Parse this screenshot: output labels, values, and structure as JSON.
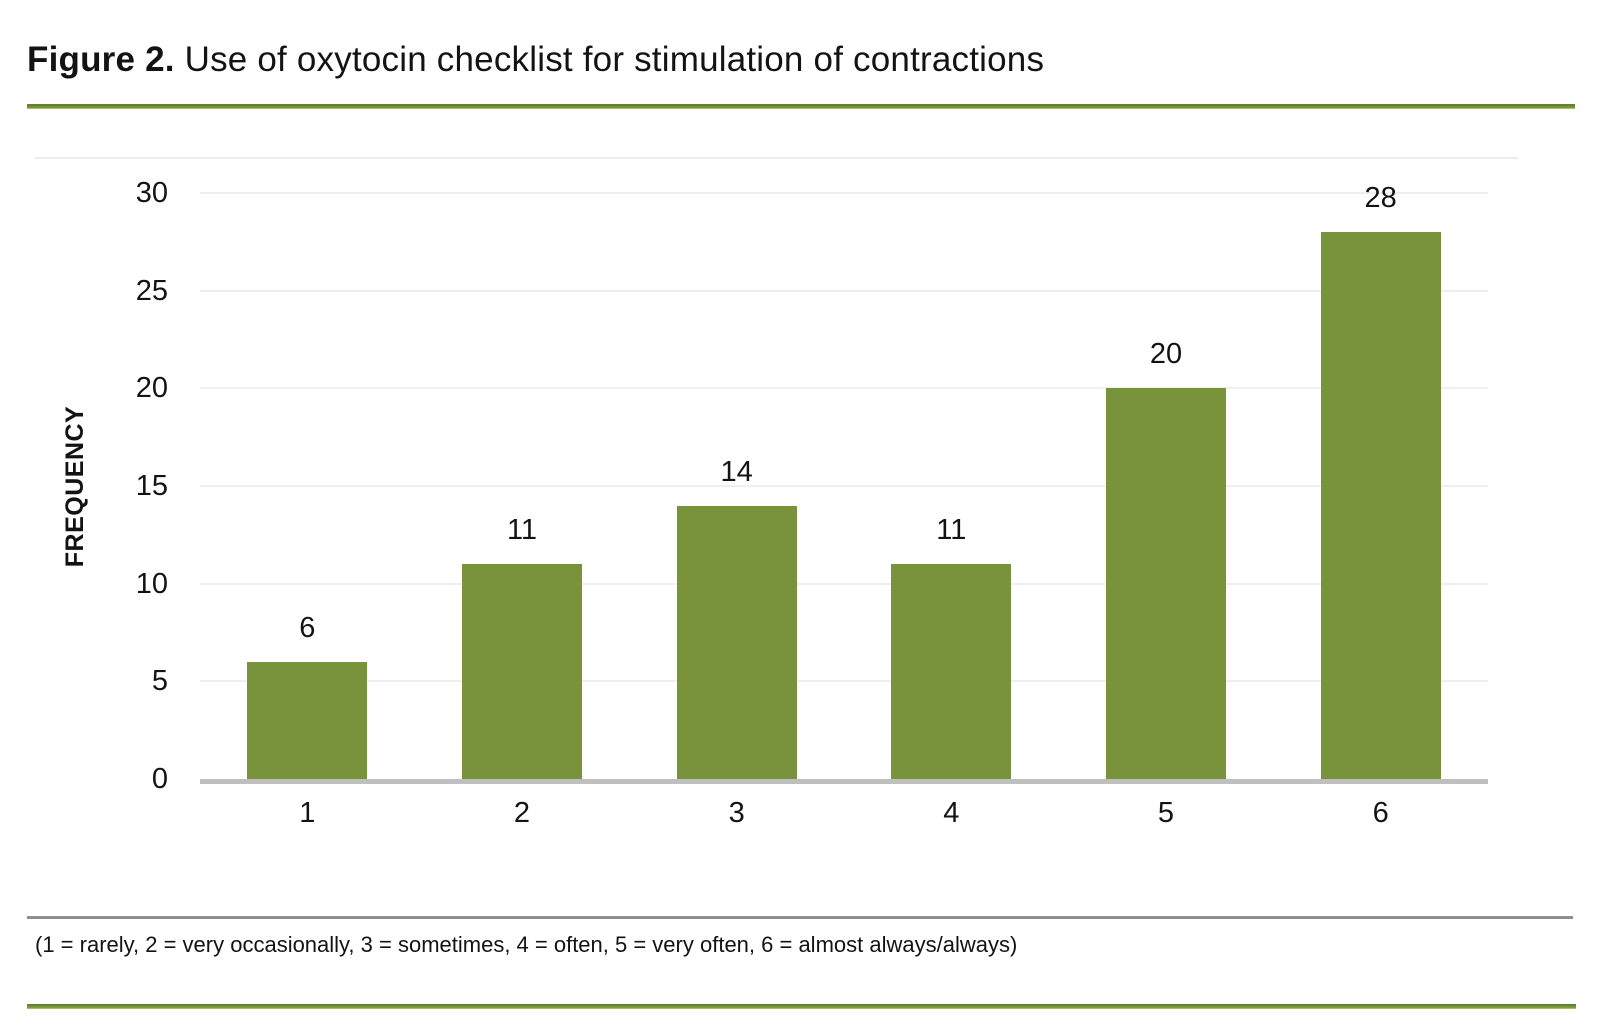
{
  "figure": {
    "label": "Figure 2.",
    "title": "Use of oxytocin checklist for stimulation of contractions"
  },
  "chart_data": {
    "type": "bar",
    "categories": [
      "1",
      "2",
      "3",
      "4",
      "5",
      "6"
    ],
    "values": [
      6,
      11,
      14,
      11,
      20,
      28
    ],
    "title": "Figure 2. Use of oxytocin checklist for stimulation of contractions",
    "xlabel": "",
    "ylabel": "FREQUENCY",
    "ylim": [
      0,
      30
    ],
    "yticks": [
      0,
      5,
      10,
      15,
      20,
      25,
      30
    ],
    "grid": true,
    "legend_position": "none",
    "data_labels_shown": true,
    "bar_color": "#78933B"
  },
  "footnote": "(1 = rarely, 2 = very occasionally, 3 = sometimes, 4 = often, 5 = very often, 6 = almost always/always)",
  "colors": {
    "bar_green": "#78933B",
    "rule_green": "#7A9A3E",
    "divider_gray": "#8F8F8F",
    "axis_gray": "#BFBFBF",
    "gridline_gray": "#EFEFEF"
  }
}
